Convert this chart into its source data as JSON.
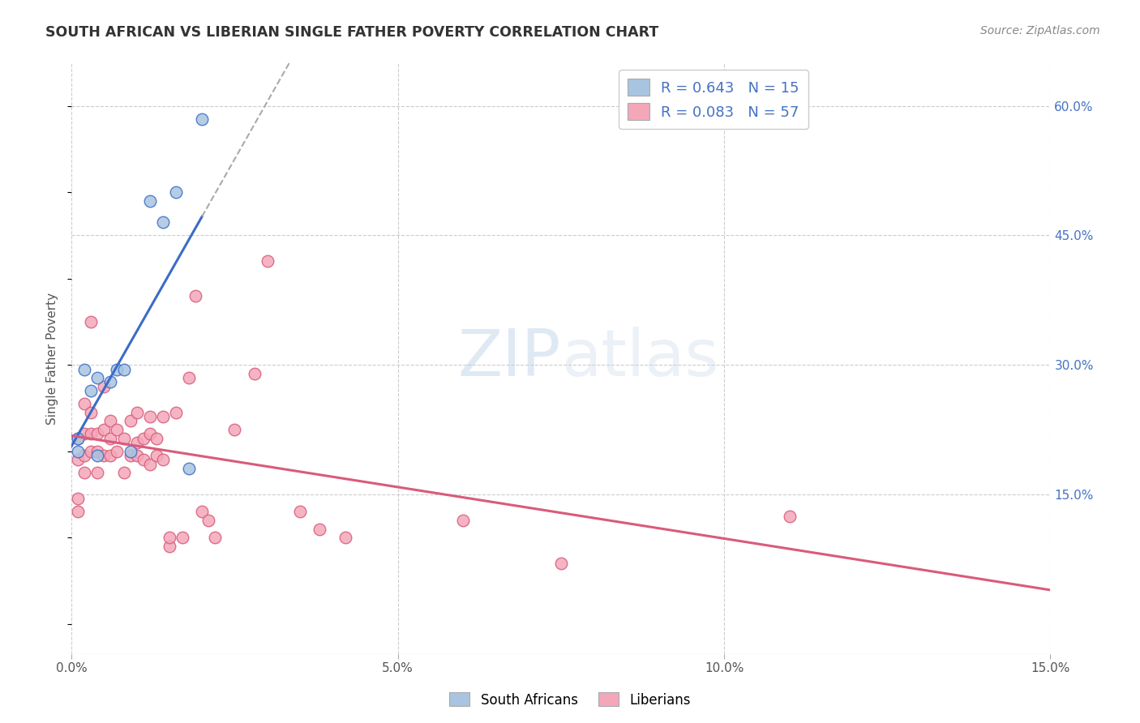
{
  "title": "SOUTH AFRICAN VS LIBERIAN SINGLE FATHER POVERTY CORRELATION CHART",
  "source": "Source: ZipAtlas.com",
  "ylabel": "Single Father Poverty",
  "xlim": [
    0.0,
    0.15
  ],
  "ylim": [
    -0.035,
    0.65
  ],
  "r_sa": 0.643,
  "n_sa": 15,
  "r_lib": 0.083,
  "n_lib": 57,
  "sa_color": "#a8c4e0",
  "lib_color": "#f4a7b9",
  "sa_line_color": "#3b6cc7",
  "lib_line_color": "#d95b7a",
  "background_color": "#ffffff",
  "grid_color": "#cccccc",
  "sa_x": [
    0.001,
    0.001,
    0.002,
    0.003,
    0.004,
    0.004,
    0.006,
    0.007,
    0.008,
    0.009,
    0.012,
    0.014,
    0.016,
    0.018,
    0.02
  ],
  "sa_y": [
    0.2,
    0.215,
    0.295,
    0.27,
    0.195,
    0.285,
    0.28,
    0.295,
    0.295,
    0.2,
    0.49,
    0.465,
    0.5,
    0.18,
    0.585
  ],
  "lib_x": [
    0.001,
    0.001,
    0.001,
    0.001,
    0.002,
    0.002,
    0.002,
    0.002,
    0.003,
    0.003,
    0.003,
    0.003,
    0.004,
    0.004,
    0.004,
    0.005,
    0.005,
    0.005,
    0.006,
    0.006,
    0.006,
    0.007,
    0.007,
    0.008,
    0.008,
    0.009,
    0.009,
    0.01,
    0.01,
    0.01,
    0.011,
    0.011,
    0.012,
    0.012,
    0.012,
    0.013,
    0.013,
    0.014,
    0.014,
    0.015,
    0.015,
    0.016,
    0.017,
    0.018,
    0.019,
    0.02,
    0.021,
    0.022,
    0.025,
    0.028,
    0.03,
    0.035,
    0.038,
    0.042,
    0.06,
    0.075,
    0.11
  ],
  "lib_y": [
    0.13,
    0.145,
    0.19,
    0.215,
    0.22,
    0.195,
    0.175,
    0.255,
    0.2,
    0.22,
    0.245,
    0.35,
    0.2,
    0.22,
    0.175,
    0.195,
    0.225,
    0.275,
    0.195,
    0.215,
    0.235,
    0.2,
    0.225,
    0.175,
    0.215,
    0.195,
    0.235,
    0.195,
    0.21,
    0.245,
    0.19,
    0.215,
    0.22,
    0.185,
    0.24,
    0.195,
    0.215,
    0.19,
    0.24,
    0.09,
    0.1,
    0.245,
    0.1,
    0.285,
    0.38,
    0.13,
    0.12,
    0.1,
    0.225,
    0.29,
    0.42,
    0.13,
    0.11,
    0.1,
    0.12,
    0.07,
    0.125
  ],
  "x_ticks": [
    0.0,
    0.05,
    0.1,
    0.15
  ],
  "x_tick_labels": [
    "0.0%",
    "5.0%",
    "10.0%",
    "15.0%"
  ],
  "y_ticks": [
    0.15,
    0.3,
    0.45,
    0.6
  ],
  "y_tick_labels": [
    "15.0%",
    "30.0%",
    "45.0%",
    "60.0%"
  ]
}
